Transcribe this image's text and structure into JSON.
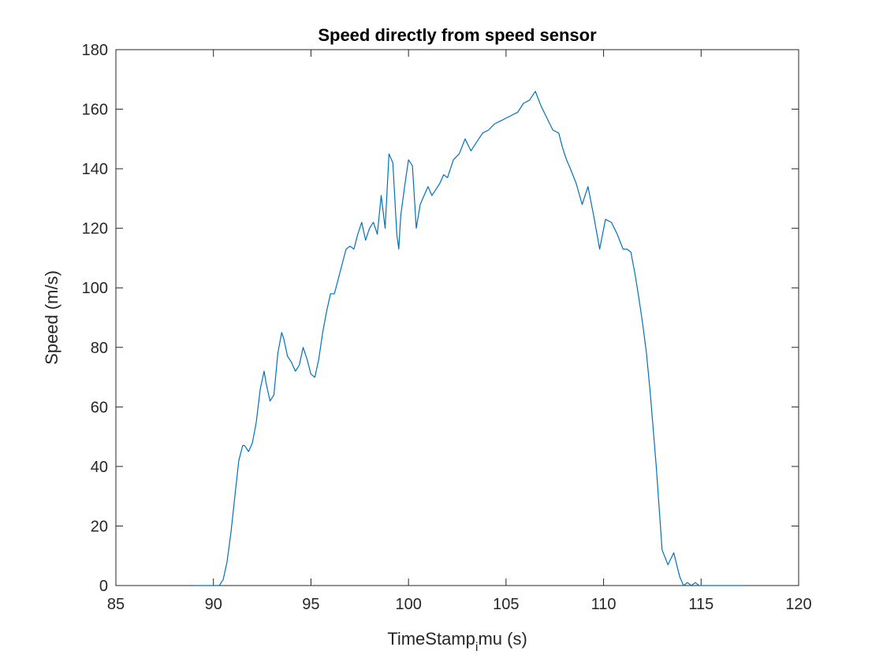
{
  "chart_data": {
    "type": "line",
    "title": "Speed directly from speed sensor",
    "xlabel": "TimeStamp",
    "xlabel_subscript": "i",
    "xlabel_suffix": "mu (s)",
    "ylabel": "Speed (m/s)",
    "xlim": [
      85,
      120
    ],
    "ylim": [
      0,
      180
    ],
    "xticks": [
      85,
      90,
      95,
      100,
      105,
      110,
      115,
      120
    ],
    "yticks": [
      0,
      20,
      40,
      60,
      80,
      100,
      120,
      140,
      160,
      180
    ],
    "grid": false,
    "line_color": "#0072BD",
    "series": [
      {
        "x": [
          89.0,
          89.5,
          90.0,
          90.3,
          90.5,
          90.7,
          90.9,
          91.1,
          91.3,
          91.5,
          91.6,
          91.8,
          92.0,
          92.2,
          92.4,
          92.6,
          92.7,
          92.9,
          93.1,
          93.3,
          93.5,
          93.6,
          93.8,
          94.0,
          94.2,
          94.4,
          94.6,
          94.8,
          95.0,
          95.2,
          95.4,
          95.6,
          95.8,
          96.0,
          96.2,
          96.4,
          96.6,
          96.8,
          97.0,
          97.2,
          97.4,
          97.6,
          97.8,
          98.0,
          98.2,
          98.4,
          98.6,
          98.8,
          99.0,
          99.2,
          99.4,
          99.5,
          99.6,
          99.8,
          100.0,
          100.2,
          100.4,
          100.6,
          100.8,
          101.0,
          101.2,
          101.4,
          101.6,
          101.8,
          102.0,
          102.3,
          102.6,
          102.9,
          103.2,
          103.5,
          103.8,
          104.1,
          104.4,
          104.7,
          105.0,
          105.3,
          105.6,
          105.9,
          106.2,
          106.5,
          106.8,
          107.1,
          107.4,
          107.7,
          107.9,
          108.1,
          108.3,
          108.6,
          108.9,
          109.2,
          109.5,
          109.8,
          110.1,
          110.4,
          110.7,
          111.0,
          111.2,
          111.4,
          111.6,
          111.8,
          112.0,
          112.2,
          112.4,
          112.7,
          113.0,
          113.3,
          113.6,
          113.9,
          114.1,
          114.3,
          114.5,
          114.7,
          114.9,
          115.1,
          115.3,
          115.5,
          115.7,
          115.9,
          116.1,
          116.3,
          116.4,
          116.6,
          116.8,
          117.0,
          117.2
        ],
        "y": [
          0,
          0,
          0,
          0,
          2,
          8,
          18,
          30,
          42,
          47,
          47,
          45,
          48,
          55,
          66,
          72,
          68,
          62,
          64,
          78,
          85,
          83,
          77,
          75,
          72,
          74,
          80,
          76,
          71,
          70,
          76,
          85,
          92,
          98,
          98,
          103,
          108,
          113,
          114,
          113,
          118,
          122,
          116,
          120,
          122,
          118,
          131,
          120,
          145,
          142,
          118,
          113,
          124,
          134,
          143,
          141,
          120,
          128,
          131,
          134,
          131,
          133,
          135,
          138,
          137,
          143,
          145,
          150,
          146,
          149,
          152,
          153,
          155,
          156,
          157,
          158,
          159,
          162,
          163,
          166,
          161,
          157,
          153,
          152,
          147,
          143,
          140,
          135,
          128,
          134,
          124,
          113,
          123,
          122,
          118,
          113,
          113,
          112,
          105,
          97,
          88,
          78,
          64,
          40,
          12,
          7,
          11,
          3,
          0,
          1,
          0,
          1,
          0,
          0,
          0,
          0,
          0,
          0,
          0,
          0,
          0,
          0,
          0,
          0,
          0
        ]
      }
    ]
  }
}
